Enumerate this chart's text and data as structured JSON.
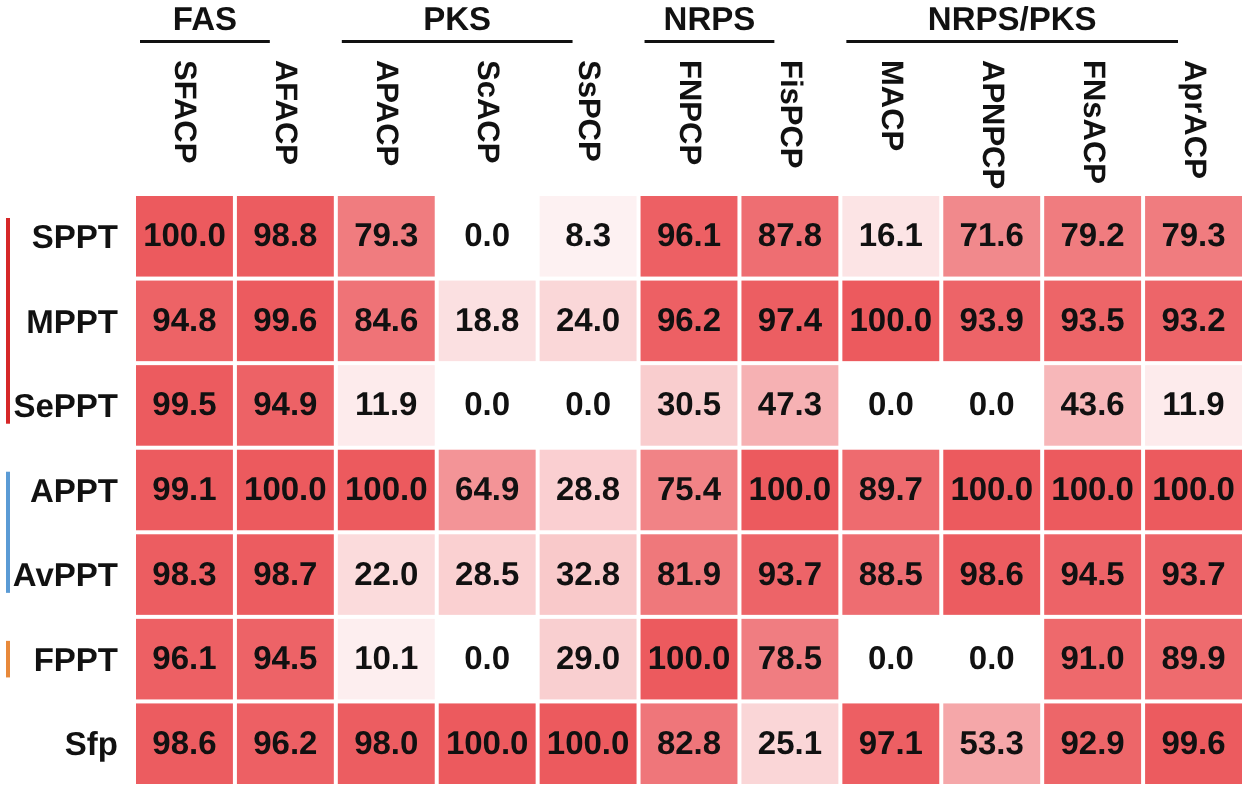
{
  "chart_data": {
    "type": "heatmap",
    "categories": [
      "SFACP",
      "AFACP",
      "APACP",
      "ScACP",
      "SsPCP",
      "FNPCP",
      "FisPCP",
      "MACP",
      "APNPCP",
      "FNsACP",
      "AprACP"
    ],
    "y_categories": [
      "SPPT",
      "MPPT",
      "SePPT",
      "APPT",
      "AvPPT",
      "FPPT",
      "Sfp"
    ],
    "cells": [
      [
        100.0,
        98.8,
        79.3,
        0.0,
        8.3,
        96.1,
        87.8,
        16.1,
        71.6,
        79.2,
        79.3
      ],
      [
        94.8,
        99.6,
        84.6,
        18.8,
        24.0,
        96.2,
        97.4,
        100.0,
        93.9,
        93.5,
        93.2
      ],
      [
        99.5,
        94.9,
        11.9,
        0.0,
        0.0,
        30.5,
        47.3,
        0.0,
        0.0,
        43.6,
        11.9
      ],
      [
        99.1,
        100.0,
        100.0,
        64.9,
        28.8,
        75.4,
        100.0,
        89.7,
        100.0,
        100.0,
        100.0
      ],
      [
        98.3,
        98.7,
        22.0,
        28.5,
        32.8,
        81.9,
        93.7,
        88.5,
        98.6,
        94.5,
        93.7
      ],
      [
        96.1,
        94.5,
        10.1,
        0.0,
        29.0,
        100.0,
        78.5,
        0.0,
        0.0,
        91.0,
        89.9
      ],
      [
        98.6,
        96.2,
        98.0,
        100.0,
        100.0,
        82.8,
        25.1,
        97.1,
        53.3,
        92.9,
        99.6
      ]
    ],
    "cell_labels": [
      [
        "100.0",
        "98.8",
        "79.3",
        "0.0",
        "8.3",
        "96.1",
        "87.8",
        "16.1",
        "71.6",
        "79.2",
        "79.3"
      ],
      [
        "94.8",
        "99.6",
        "84.6",
        "18.8",
        "24.0",
        "96.2",
        "97.4",
        "100.0",
        "93.9",
        "93.5",
        "93.2"
      ],
      [
        "99.5",
        "94.9",
        "11.9",
        "0.0",
        "0.0",
        "30.5",
        "47.3",
        "0.0",
        "0.0",
        "43.6",
        "11.9"
      ],
      [
        "99.1",
        "100.0",
        "100.0",
        "64.9",
        "28.8",
        "75.4",
        "100.0",
        "89.7",
        "100.0",
        "100.0",
        "100.0"
      ],
      [
        "98.3",
        "98.7",
        "22.0",
        "28.5",
        "32.8",
        "81.9",
        "93.7",
        "88.5",
        "98.6",
        "94.5",
        "93.7"
      ],
      [
        "96.1",
        "94.5",
        "10.1",
        "0.0",
        "29.0",
        "100.0",
        "78.5",
        "0.0",
        "0.0",
        "91.0",
        "89.9"
      ],
      [
        "98.6",
        "96.2",
        "98.0",
        "100.0",
        "100.0",
        "82.8",
        "25.1",
        "97.1",
        "53.3",
        "92.9",
        "99.6"
      ]
    ],
    "color": "#ec5a5e",
    "annotations": [
      "FAS",
      "PKS",
      "NRPS",
      "NRPS/PKS"
    ]
  }
}
